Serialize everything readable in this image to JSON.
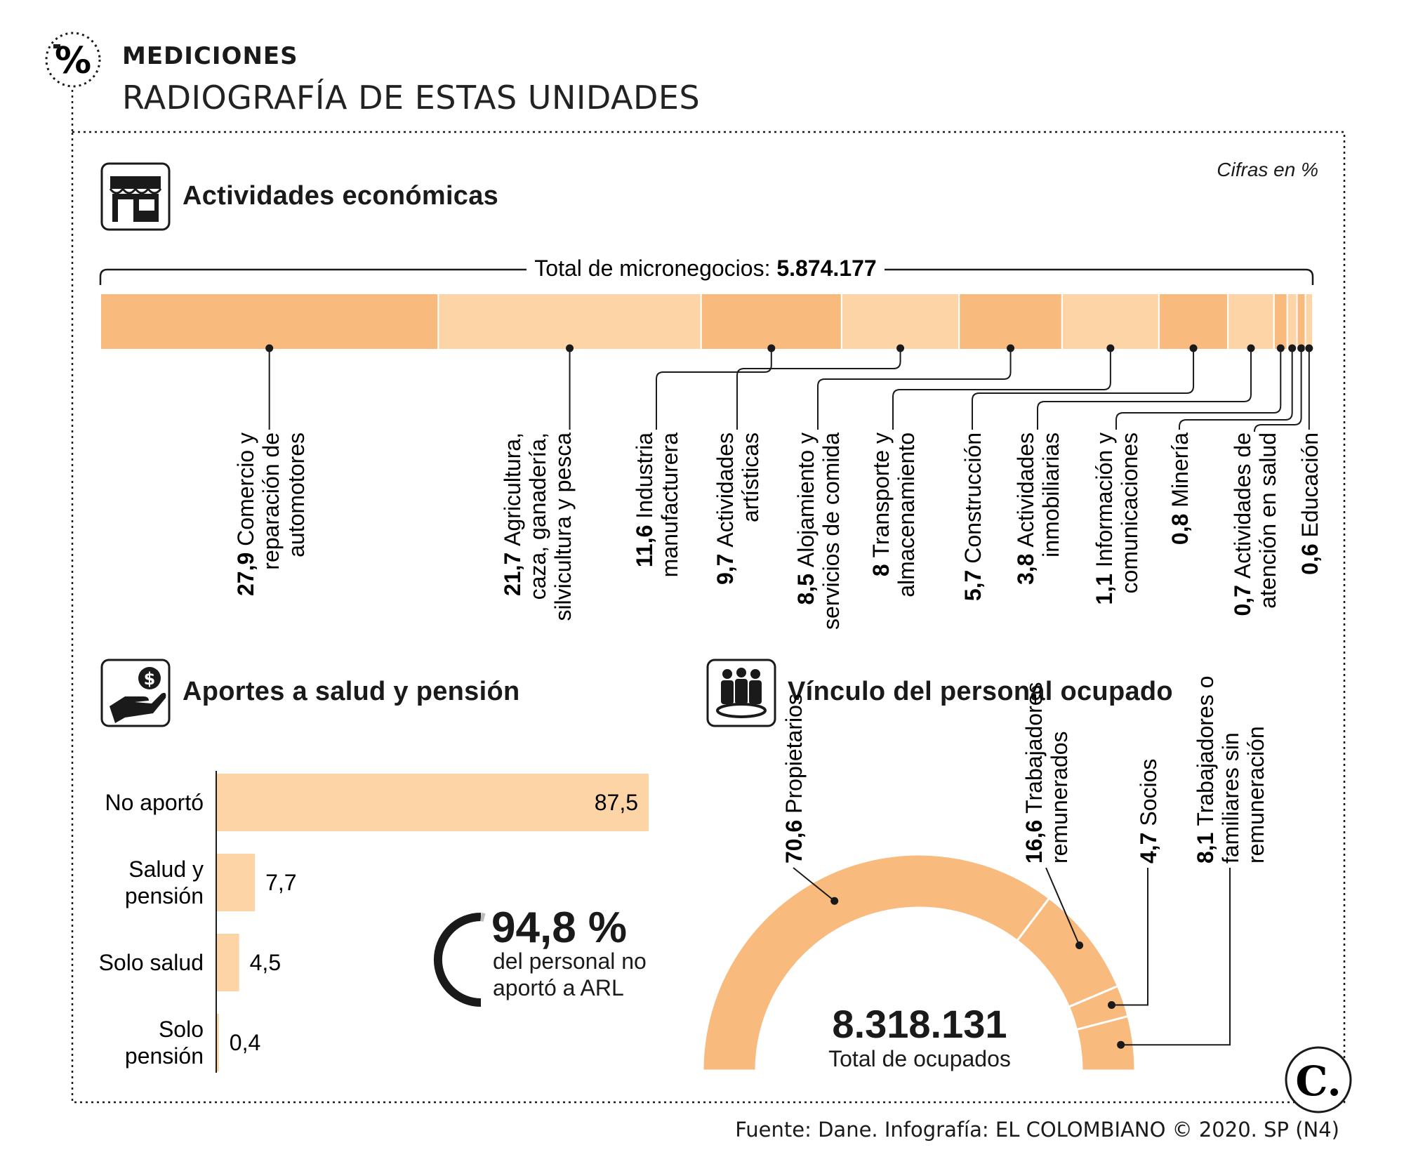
{
  "header": {
    "kicker": "MEDICIONES",
    "title": "RADIOGRAFÍA DE ESTAS UNIDADES"
  },
  "units_note": "Cifras en %",
  "source": "Fuente: Dane. Infografía: EL COLOMBIANO © 2020. SP (N4)",
  "logo_text": "C.",
  "colors": {
    "orange": "#f8ba7d",
    "light": "#fdd4a6",
    "ink": "#1a1a1a"
  },
  "sections": {
    "activities": {
      "title": "Actividades económicas",
      "icon": "store-icon",
      "total_prefix": "Total de micronegocios: ",
      "total_value": "5.874.177"
    },
    "contributions": {
      "title": "Aportes a salud y pensión",
      "icon": "hand-money-icon",
      "arl_value": "94,8 %",
      "arl_text_1": "del personal no",
      "arl_text_2": "aportó a ARL"
    },
    "employment": {
      "title": "Vínculo del personal ocupado",
      "icon": "people-group-icon",
      "total_value": "8.318.131",
      "total_label": "Total de ocupados"
    }
  },
  "chart_data": [
    {
      "type": "bar",
      "orientation": "stacked-horizontal",
      "title": "Actividades económicas",
      "categories": [
        "Comercio y reparación de automotores",
        "Agricultura, caza, ganadería, silvicultura y pesca",
        "Industria manufacturera",
        "Actividades artísticas",
        "Alojamiento y servicios de comida",
        "Transporte y almacenamiento",
        "Construcción",
        "Actividades inmobiliarias",
        "Información y comunicaciones",
        "Minería",
        "Actividades de atención en salud",
        "Educación"
      ],
      "values": [
        27.9,
        21.7,
        11.6,
        9.7,
        8.5,
        8,
        5.7,
        3.8,
        1.1,
        0.8,
        0.7,
        0.6
      ],
      "labels": [
        {
          "value": "27,9",
          "lines": [
            "Comercio y",
            "reparación de",
            "automotores"
          ]
        },
        {
          "value": "21,7",
          "lines": [
            "Agricultura,",
            "caza, ganadería,",
            "silvicultura y pesca"
          ]
        },
        {
          "value": "11,6",
          "lines": [
            "Industria",
            "manufacturera"
          ]
        },
        {
          "value": "9,7",
          "lines": [
            "Actividades",
            "artísticas"
          ]
        },
        {
          "value": "8,5",
          "lines": [
            "Alojamiento y",
            "servicios de comida"
          ]
        },
        {
          "value": "8",
          "lines": [
            "Transporte y",
            "almacenamiento"
          ]
        },
        {
          "value": "5,7",
          "lines": [
            "Construcción"
          ]
        },
        {
          "value": "3,8",
          "lines": [
            "Actividades",
            "inmobiliarias"
          ]
        },
        {
          "value": "1,1",
          "lines": [
            "Información y",
            "comunicaciones"
          ]
        },
        {
          "value": "0,8",
          "lines": [
            "Minería"
          ]
        },
        {
          "value": "0,7",
          "lines": [
            "Actividades de",
            "atención en salud"
          ]
        },
        {
          "value": "0,6",
          "lines": [
            "Educación"
          ]
        }
      ]
    },
    {
      "type": "bar",
      "orientation": "horizontal",
      "title": "Aportes a salud y pensión",
      "categories": [
        "No aportó",
        "Salud y pensión",
        "Solo salud",
        "Solo pensión"
      ],
      "category_lines": [
        [
          "No aportó"
        ],
        [
          "Salud y",
          "pensión"
        ],
        [
          "Solo salud"
        ],
        [
          "Solo",
          "pensión"
        ]
      ],
      "values": [
        87.5,
        7.7,
        4.5,
        0.4
      ],
      "value_labels": [
        "87,5",
        "7,7",
        "4,5",
        "0,4"
      ]
    },
    {
      "type": "pie",
      "shape": "half-donut",
      "title": "Vínculo del personal ocupado",
      "categories": [
        "Propietarios",
        "Trabajadores remunerados",
        "Socios",
        "Trabajadores o familiares sin remuneración"
      ],
      "values": [
        70.6,
        16.6,
        4.7,
        8.1
      ],
      "labels": [
        {
          "value": "70,6",
          "lines": [
            "Propietarios"
          ]
        },
        {
          "value": "16,6",
          "lines": [
            "Trabajadores",
            "remunerados"
          ]
        },
        {
          "value": "4,7",
          "lines": [
            "Socios"
          ]
        },
        {
          "value": "8,1",
          "lines": [
            "Trabajadores o",
            "familiares sin",
            "remuneración"
          ]
        }
      ]
    }
  ]
}
